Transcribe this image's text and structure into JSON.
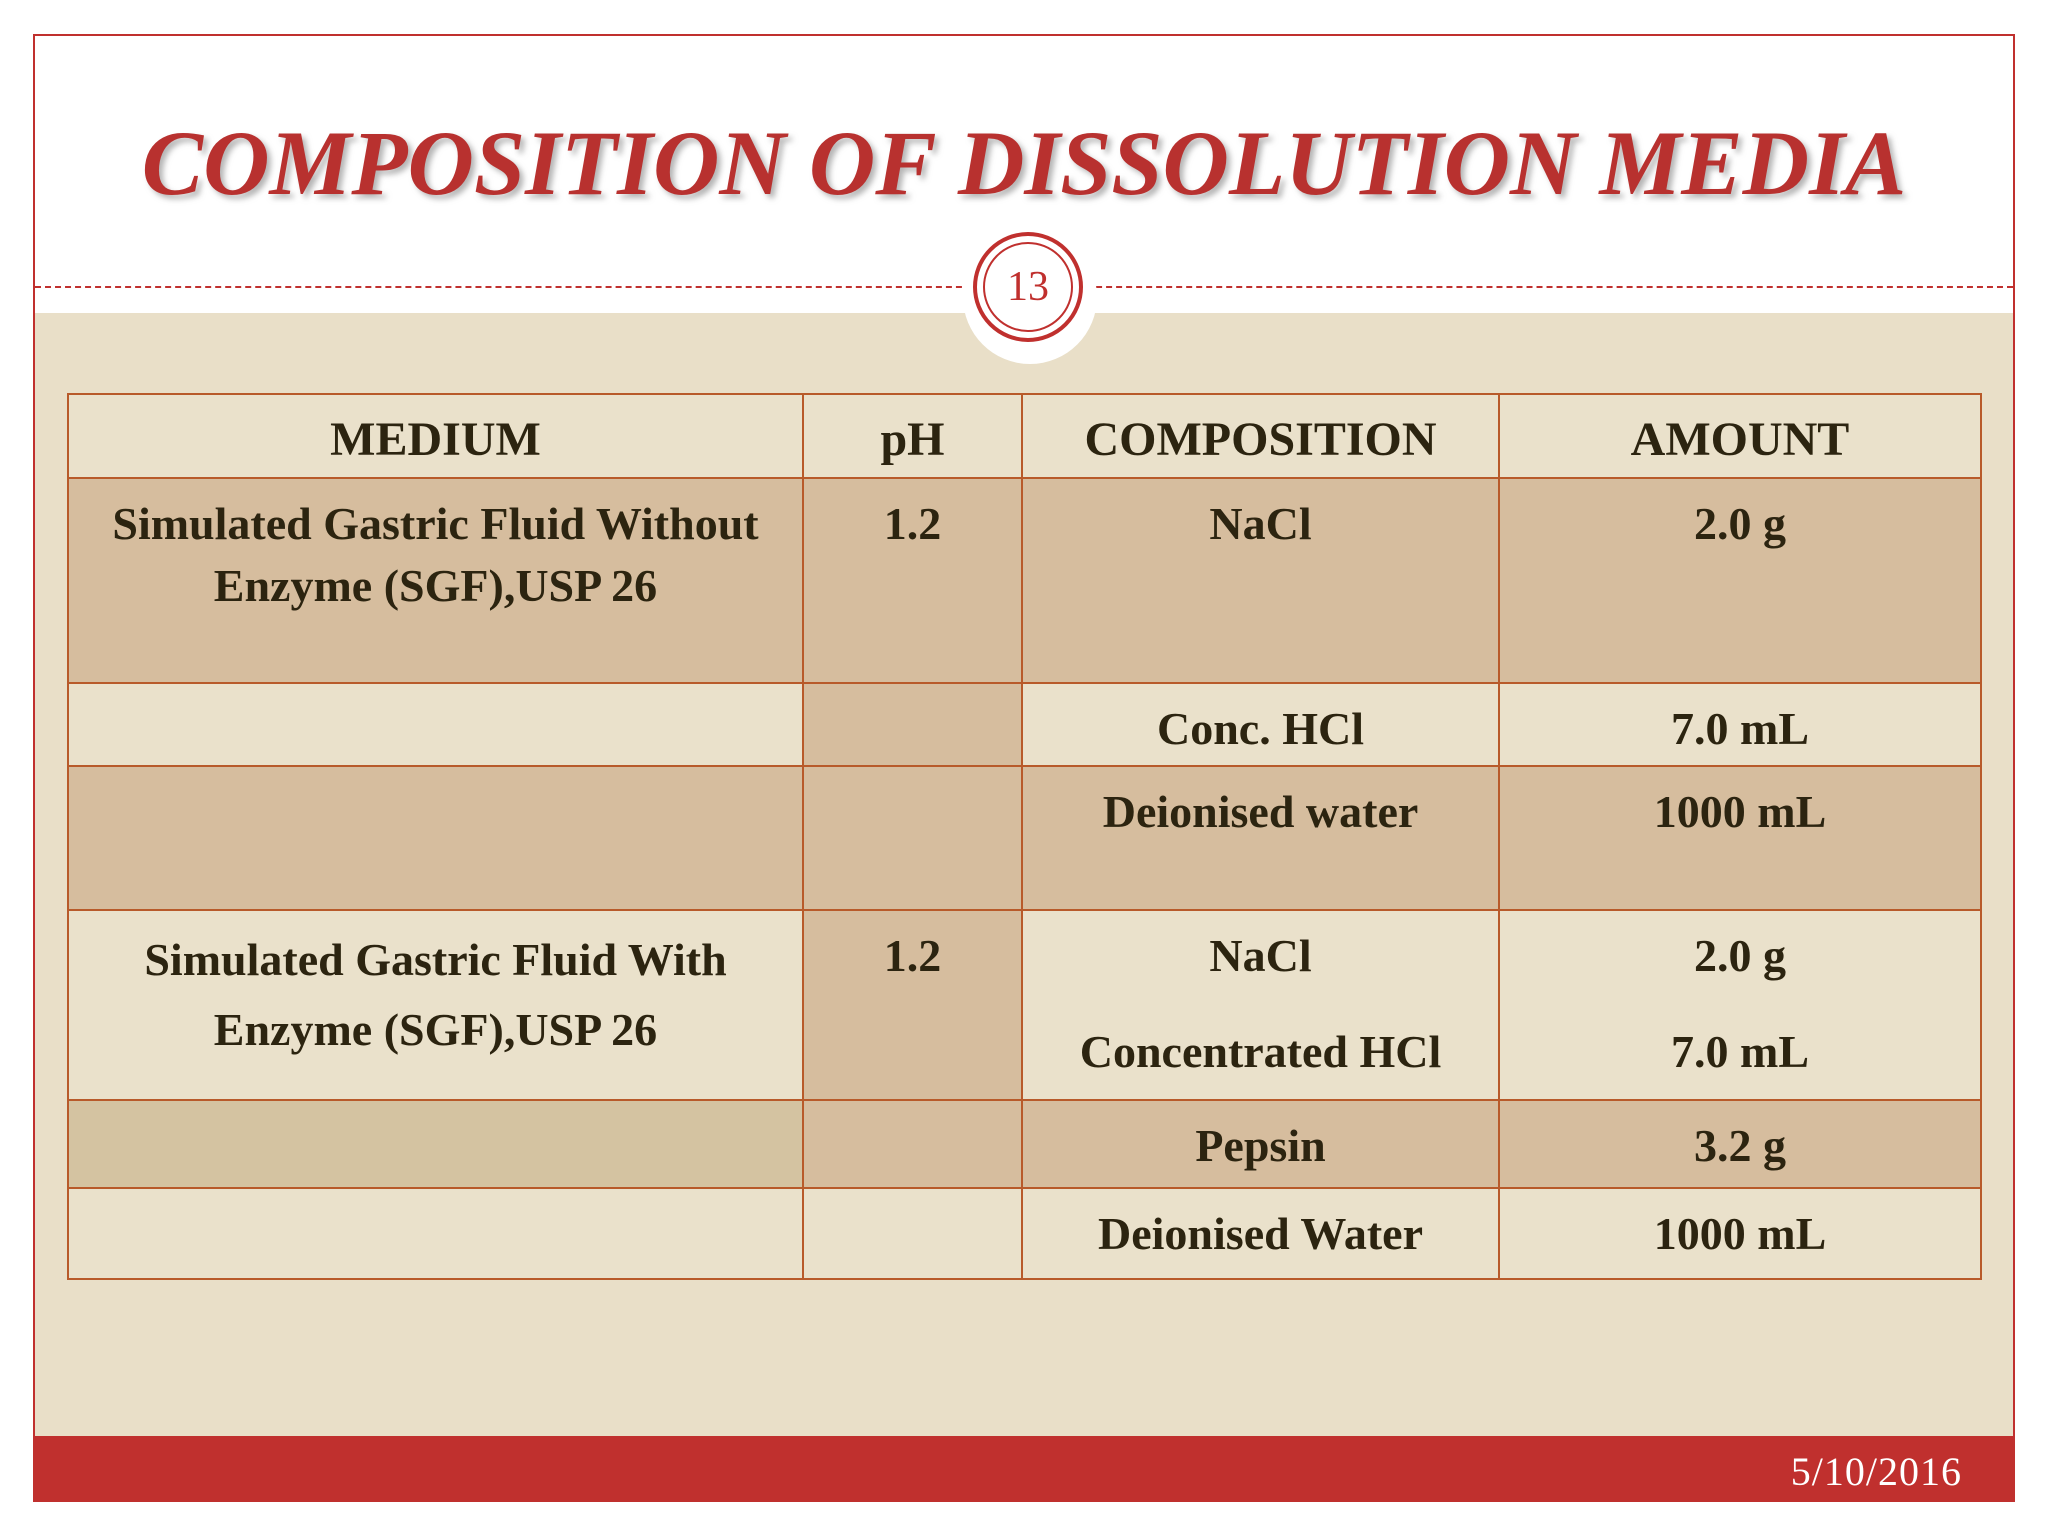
{
  "slide": {
    "title": "COMPOSITION OF DISSOLUTION MEDIA",
    "page_number": "13",
    "date": "5/10/2016"
  },
  "colors": {
    "accent_red": "#c0302e",
    "panel_beige": "#e9dfc8",
    "row_dark": "#d6bd9e",
    "row_light": "#eae1cb",
    "grid_line": "#b85a2a"
  },
  "table": {
    "headers": [
      "MEDIUM",
      "pH",
      "COMPOSITION",
      "AMOUNT"
    ],
    "rows": [
      {
        "medium": "Simulated Gastric   Fluid Without Enzyme (SGF),USP 26",
        "ph": "1.2",
        "composition": "NaCl",
        "amount": "2.0 g"
      },
      {
        "medium": "",
        "ph": "",
        "composition": "Conc. HCl",
        "amount": "7.0 mL"
      },
      {
        "medium": "",
        "ph": "",
        "composition": "Deionised water",
        "amount": "1000 mL"
      },
      {
        "medium": "Simulated Gastric   Fluid With Enzyme (SGF),USP 26",
        "ph": "1.2",
        "composition": "NaCl",
        "composition_2": "Concentrated HCl",
        "amount": "2.0 g",
        "amount_2": "7.0 mL"
      },
      {
        "medium": "",
        "ph": "",
        "composition": "Pepsin",
        "amount": "3.2 g"
      },
      {
        "medium": "",
        "ph": "",
        "composition": "Deionised Water",
        "amount": "1000 mL"
      }
    ]
  }
}
